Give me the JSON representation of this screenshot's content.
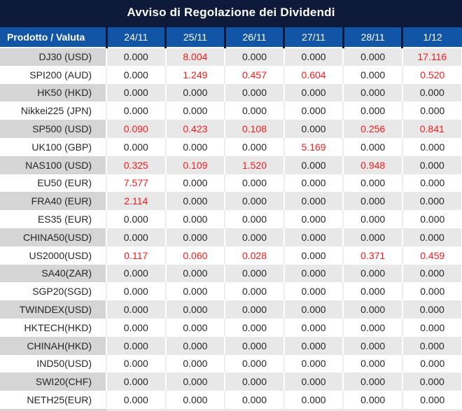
{
  "title": "Avviso di Regolazione dei Dividendi",
  "table": {
    "product_header": "Prodotto / Valuta",
    "date_headers": [
      "24/11",
      "25/11",
      "26/11",
      "27/11",
      "28/11",
      "1/12"
    ],
    "zero_value": "0.000",
    "rows": [
      {
        "product": "DJ30 (USD)",
        "values": [
          "0.000",
          "8.004",
          "0.000",
          "0.000",
          "0.000",
          "17.116"
        ]
      },
      {
        "product": "SPI200 (AUD)",
        "values": [
          "0.000",
          "1.249",
          "0.457",
          "0.604",
          "0.000",
          "0.520"
        ]
      },
      {
        "product": "HK50 (HKD)",
        "values": [
          "0.000",
          "0.000",
          "0.000",
          "0.000",
          "0.000",
          "0.000"
        ]
      },
      {
        "product": "Nikkei225 (JPN)",
        "values": [
          "0.000",
          "0.000",
          "0.000",
          "0.000",
          "0.000",
          "0.000"
        ]
      },
      {
        "product": "SP500 (USD)",
        "values": [
          "0.090",
          "0.423",
          "0.108",
          "0.000",
          "0.256",
          "0.841"
        ]
      },
      {
        "product": "UK100 (GBP)",
        "values": [
          "0.000",
          "0.000",
          "0.000",
          "5.169",
          "0.000",
          "0.000"
        ]
      },
      {
        "product": "NAS100 (USD)",
        "values": [
          "0.325",
          "0.109",
          "1.520",
          "0.000",
          "0.948",
          "0.000"
        ]
      },
      {
        "product": "EU50 (EUR)",
        "values": [
          "7.577",
          "0.000",
          "0.000",
          "0.000",
          "0.000",
          "0.000"
        ]
      },
      {
        "product": "FRA40 (EUR)",
        "values": [
          "2.114",
          "0.000",
          "0.000",
          "0.000",
          "0.000",
          "0.000"
        ]
      },
      {
        "product": "ES35 (EUR)",
        "values": [
          "0.000",
          "0.000",
          "0.000",
          "0.000",
          "0.000",
          "0.000"
        ]
      },
      {
        "product": "CHINA50(USD)",
        "values": [
          "0.000",
          "0.000",
          "0.000",
          "0.000",
          "0.000",
          "0.000"
        ]
      },
      {
        "product": "US2000(USD)",
        "values": [
          "0.117",
          "0.060",
          "0.028",
          "0.000",
          "0.371",
          "0.459"
        ]
      },
      {
        "product": "SA40(ZAR)",
        "values": [
          "0.000",
          "0.000",
          "0.000",
          "0.000",
          "0.000",
          "0.000"
        ]
      },
      {
        "product": "SGP20(SGD)",
        "values": [
          "0.000",
          "0.000",
          "0.000",
          "0.000",
          "0.000",
          "0.000"
        ]
      },
      {
        "product": "TWINDEX(USD)",
        "values": [
          "0.000",
          "0.000",
          "0.000",
          "0.000",
          "0.000",
          "0.000"
        ]
      },
      {
        "product": "HKTECH(HKD)",
        "values": [
          "0.000",
          "0.000",
          "0.000",
          "0.000",
          "0.000",
          "0.000"
        ]
      },
      {
        "product": "CHINAH(HKD)",
        "values": [
          "0.000",
          "0.000",
          "0.000",
          "0.000",
          "0.000",
          "0.000"
        ]
      },
      {
        "product": "IND50(USD)",
        "values": [
          "0.000",
          "0.000",
          "0.000",
          "0.000",
          "0.000",
          "0.000"
        ]
      },
      {
        "product": "SWI20(CHF)",
        "values": [
          "0.000",
          "0.000",
          "0.000",
          "0.000",
          "0.000",
          "0.000"
        ]
      },
      {
        "product": "NETH25(EUR)",
        "values": [
          "0.000",
          "0.000",
          "0.000",
          "0.000",
          "0.000",
          "0.000"
        ]
      }
    ]
  },
  "colors": {
    "title_bar_navy": "#0d1a39",
    "header_blue": "#1156a6",
    "highlight_red": "#f81a1a",
    "stripe_gray": "#e8e8e8",
    "stripe_product_gray": "#d5d5d5",
    "text_dark": "#262626"
  }
}
